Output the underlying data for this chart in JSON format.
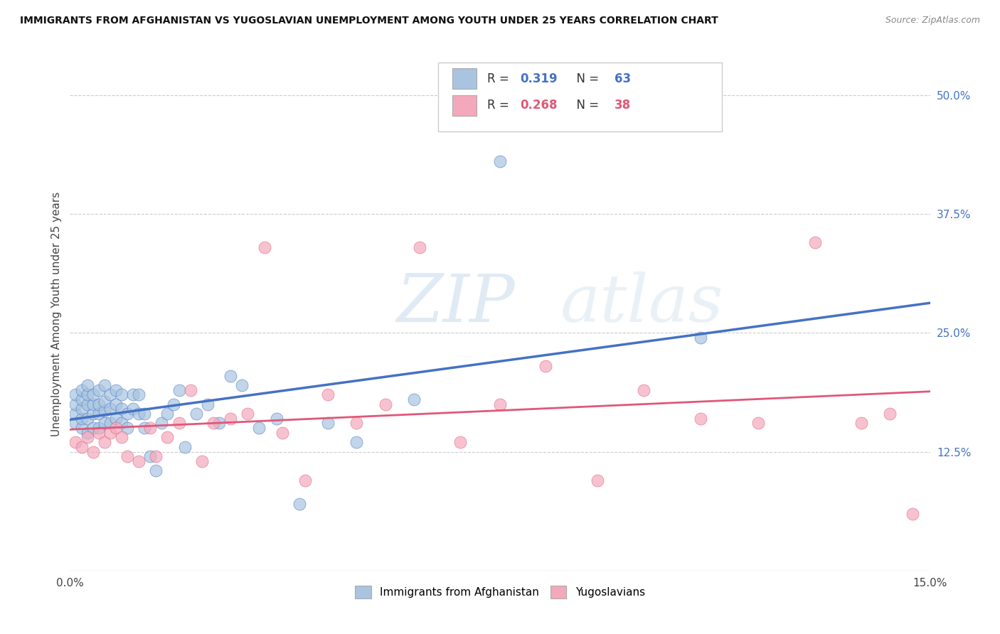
{
  "title": "IMMIGRANTS FROM AFGHANISTAN VS YUGOSLAVIAN UNEMPLOYMENT AMONG YOUTH UNDER 25 YEARS CORRELATION CHART",
  "source": "Source: ZipAtlas.com",
  "ylabel": "Unemployment Among Youth under 25 years",
  "xlim": [
    0.0,
    0.15
  ],
  "ylim": [
    0.0,
    0.54
  ],
  "yticks_right": [
    0.0,
    0.125,
    0.25,
    0.375,
    0.5
  ],
  "ytick_labels_right": [
    "",
    "12.5%",
    "25.0%",
    "37.5%",
    "50.0%"
  ],
  "r_afghanistan": 0.319,
  "n_afghanistan": 63,
  "r_yugoslavian": 0.268,
  "n_yugoslavian": 38,
  "color_afghanistan": "#a8c4e0",
  "color_yugoslavian": "#f4a8bc",
  "line_color_afghanistan": "#4472c4",
  "line_color_yugoslavian": "#e05878",
  "watermark_zip": "ZIP",
  "watermark_atlas": "atlas",
  "afghanistan_x": [
    0.001,
    0.001,
    0.001,
    0.001,
    0.002,
    0.002,
    0.002,
    0.002,
    0.002,
    0.003,
    0.003,
    0.003,
    0.003,
    0.003,
    0.004,
    0.004,
    0.004,
    0.004,
    0.005,
    0.005,
    0.005,
    0.005,
    0.006,
    0.006,
    0.006,
    0.006,
    0.007,
    0.007,
    0.007,
    0.008,
    0.008,
    0.008,
    0.009,
    0.009,
    0.009,
    0.01,
    0.01,
    0.011,
    0.011,
    0.012,
    0.012,
    0.013,
    0.013,
    0.014,
    0.015,
    0.016,
    0.017,
    0.018,
    0.019,
    0.02,
    0.022,
    0.024,
    0.026,
    0.028,
    0.03,
    0.033,
    0.036,
    0.04,
    0.045,
    0.05,
    0.06,
    0.075,
    0.11
  ],
  "afghanistan_y": [
    0.155,
    0.165,
    0.175,
    0.185,
    0.15,
    0.16,
    0.17,
    0.18,
    0.19,
    0.145,
    0.16,
    0.175,
    0.185,
    0.195,
    0.15,
    0.165,
    0.175,
    0.185,
    0.15,
    0.165,
    0.175,
    0.19,
    0.155,
    0.168,
    0.178,
    0.195,
    0.155,
    0.17,
    0.185,
    0.16,
    0.175,
    0.19,
    0.155,
    0.17,
    0.185,
    0.15,
    0.165,
    0.17,
    0.185,
    0.165,
    0.185,
    0.15,
    0.165,
    0.12,
    0.105,
    0.155,
    0.165,
    0.175,
    0.19,
    0.13,
    0.165,
    0.175,
    0.155,
    0.205,
    0.195,
    0.15,
    0.16,
    0.07,
    0.155,
    0.135,
    0.18,
    0.43,
    0.245
  ],
  "yugoslavian_x": [
    0.001,
    0.002,
    0.003,
    0.004,
    0.005,
    0.006,
    0.007,
    0.008,
    0.009,
    0.01,
    0.012,
    0.014,
    0.015,
    0.017,
    0.019,
    0.021,
    0.023,
    0.025,
    0.028,
    0.031,
    0.034,
    0.037,
    0.041,
    0.045,
    0.05,
    0.055,
    0.061,
    0.068,
    0.075,
    0.083,
    0.092,
    0.1,
    0.11,
    0.12,
    0.13,
    0.138,
    0.143,
    0.147
  ],
  "yugoslavian_y": [
    0.135,
    0.13,
    0.14,
    0.125,
    0.145,
    0.135,
    0.145,
    0.15,
    0.14,
    0.12,
    0.115,
    0.15,
    0.12,
    0.14,
    0.155,
    0.19,
    0.115,
    0.155,
    0.16,
    0.165,
    0.34,
    0.145,
    0.095,
    0.185,
    0.155,
    0.175,
    0.34,
    0.135,
    0.175,
    0.215,
    0.095,
    0.19,
    0.16,
    0.155,
    0.345,
    0.155,
    0.165,
    0.06
  ]
}
